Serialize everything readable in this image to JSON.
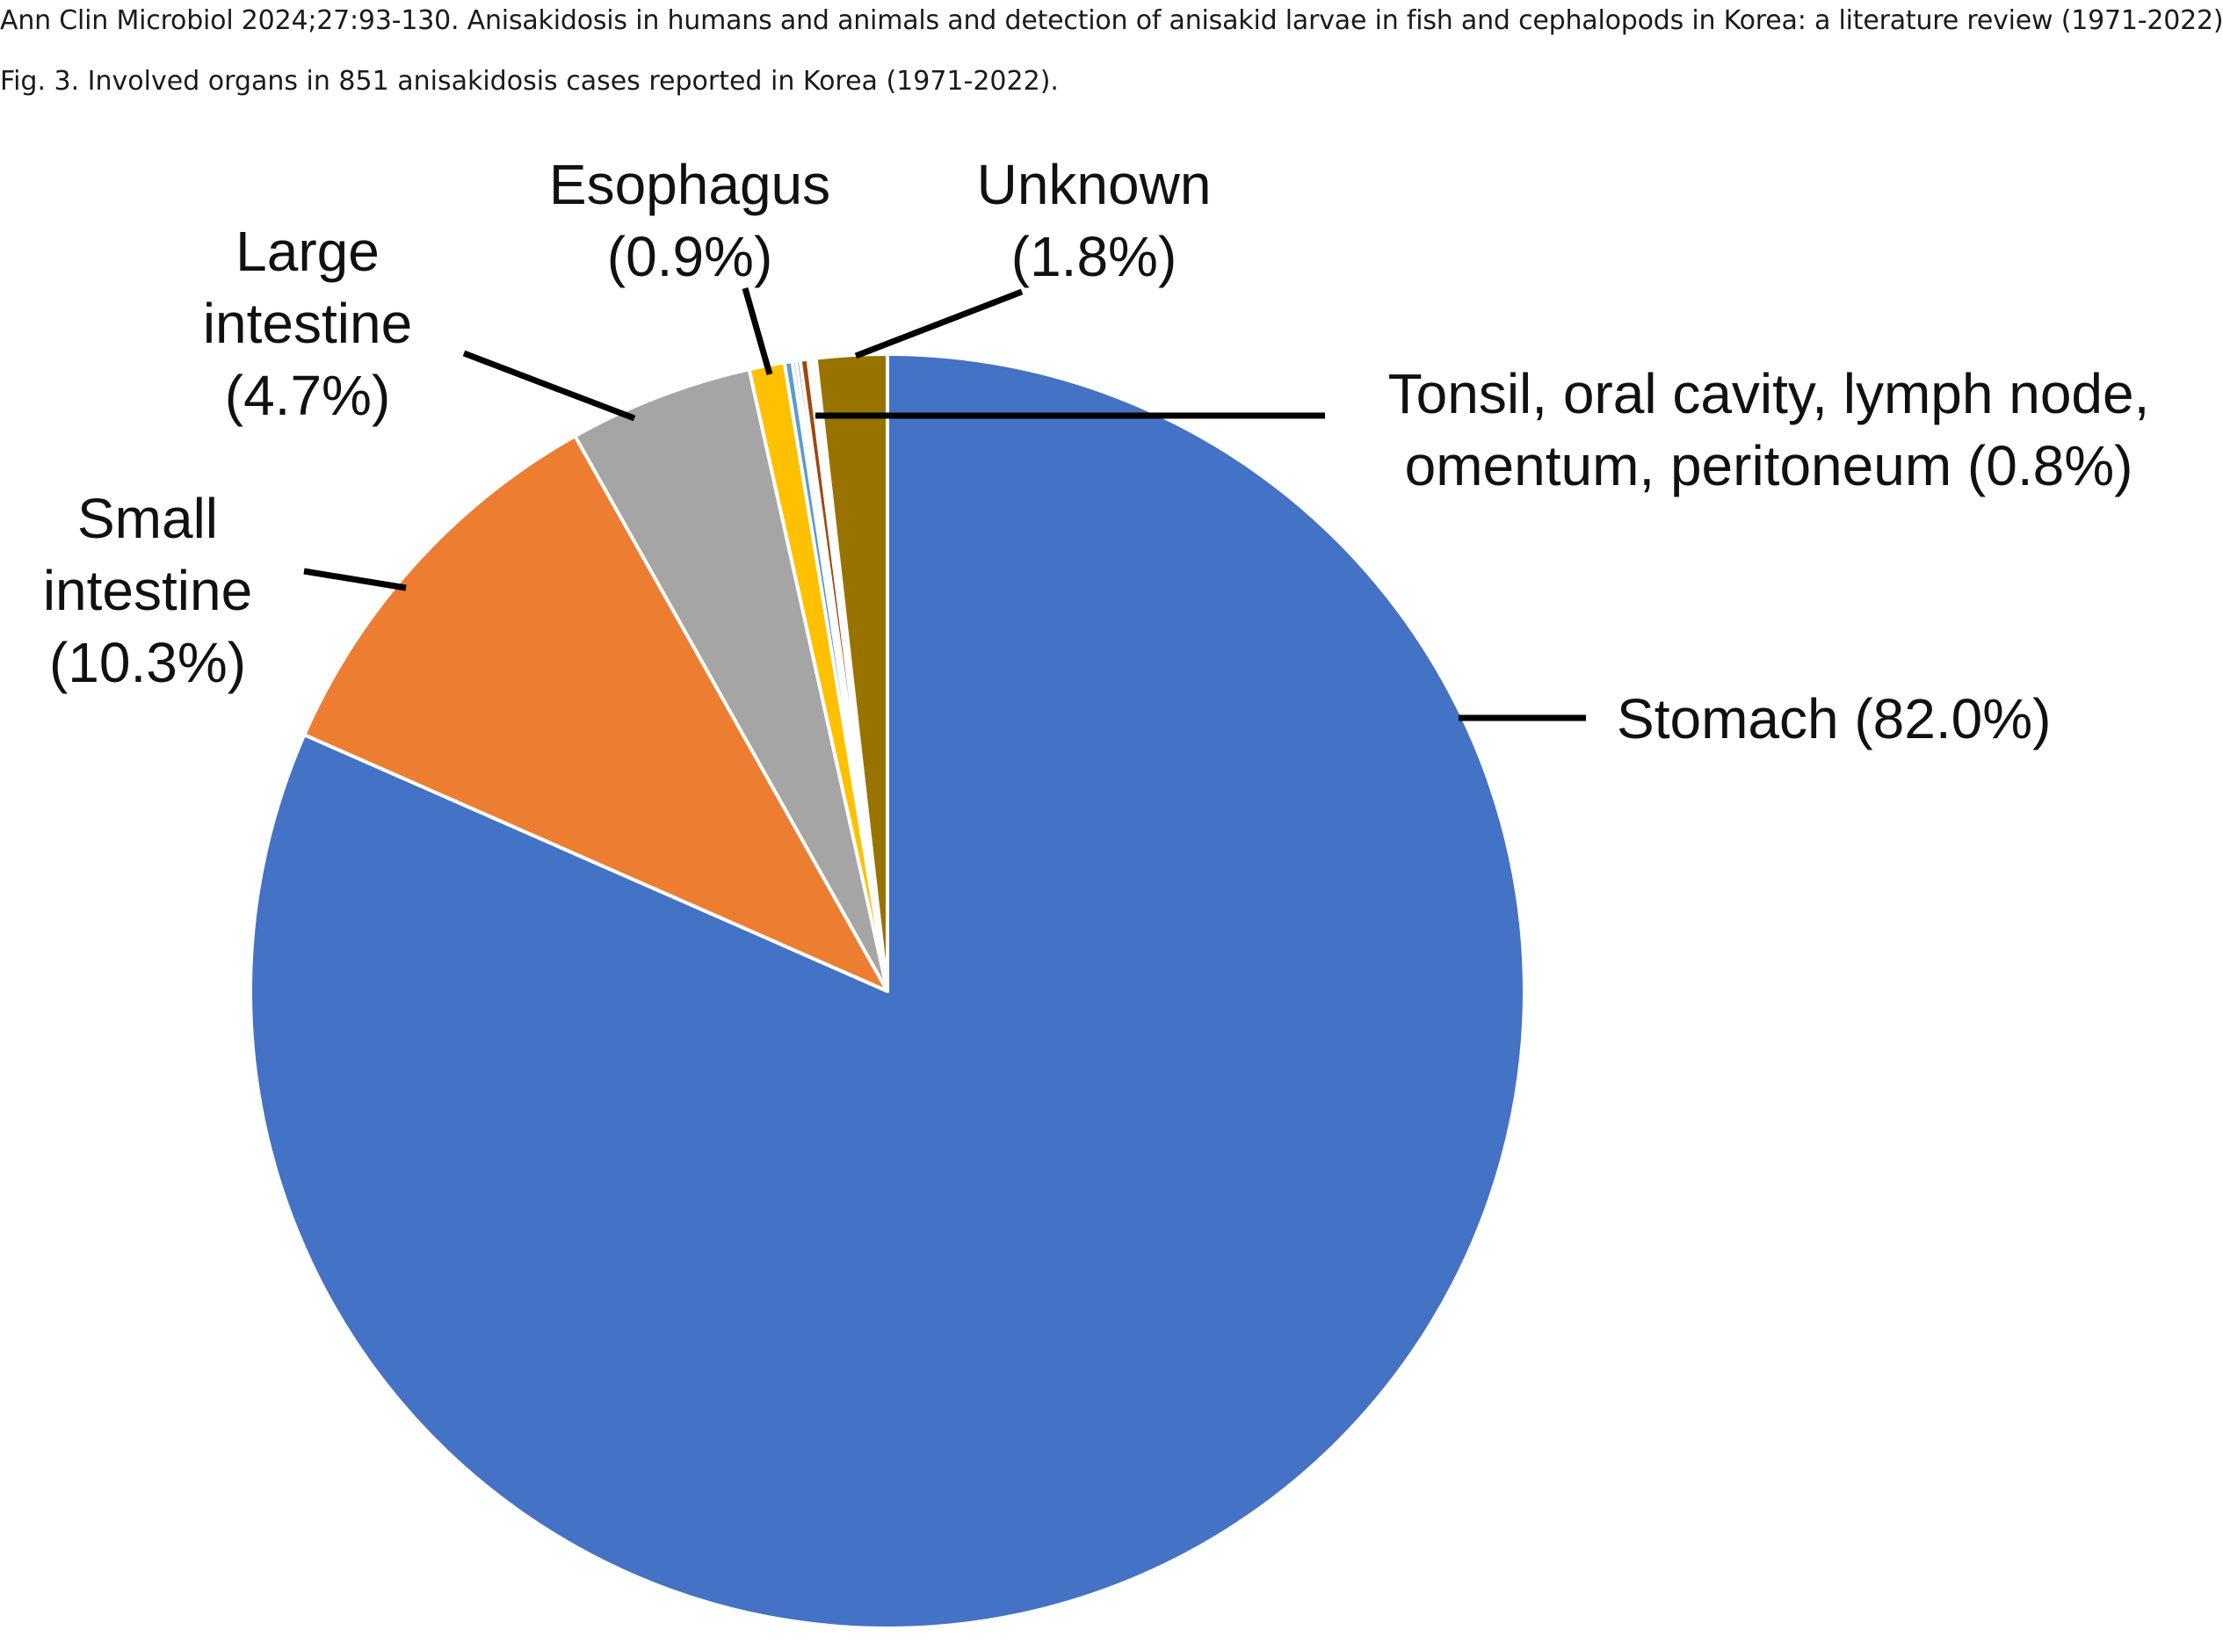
{
  "header": {
    "citation": "Ann Clin Microbiol 2024;27:93-130. Anisakidosis in humans and animals and detection of anisakid larvae in fish and cephalopods in Korea: a literature review (1971-2022)",
    "caption": "Fig. 3. Involved organs in 851 anisakidosis cases reported in Korea (1971-2022)."
  },
  "chart_data": {
    "type": "pie",
    "title": "",
    "start_angle": "12 o'clock, clockwise",
    "slices": [
      {
        "name": "Stomach",
        "value": 82.0,
        "label": "Stomach (82.0%)",
        "color": "#4472C4"
      },
      {
        "name": "Small intestine",
        "value": 10.3,
        "label_lines": [
          "Small",
          "intestine",
          "(10.3%)"
        ],
        "color": "#ED7D31"
      },
      {
        "name": "Large intestine",
        "value": 4.7,
        "label_lines": [
          "Large",
          "intestine",
          "(4.7%)"
        ],
        "color": "#A5A5A5"
      },
      {
        "name": "Esophagus",
        "value": 0.9,
        "label_lines": [
          "Esophagus",
          "(0.9%)"
        ],
        "color": "#FFC000"
      },
      {
        "name": "Tonsil",
        "value": 0.2,
        "color": "#5B9BD5"
      },
      {
        "name": "Oral cavity",
        "value": 0.1,
        "color": "#70AD47"
      },
      {
        "name": "Lymph node",
        "value": 0.1,
        "color": "#264478"
      },
      {
        "name": "Omentum",
        "value": 0.2,
        "color": "#9E480E"
      },
      {
        "name": "Peritoneum",
        "value": 0.2,
        "color": "#FFFFFF"
      },
      {
        "name": "Unknown",
        "value": 1.8,
        "label_lines": [
          "Unknown",
          "(1.8%)"
        ],
        "color": "#997300"
      }
    ],
    "group_label_lines": [
      "Tonsil, oral cavity, lymph node,",
      "omentum, peritoneum (0.8%)"
    ]
  }
}
